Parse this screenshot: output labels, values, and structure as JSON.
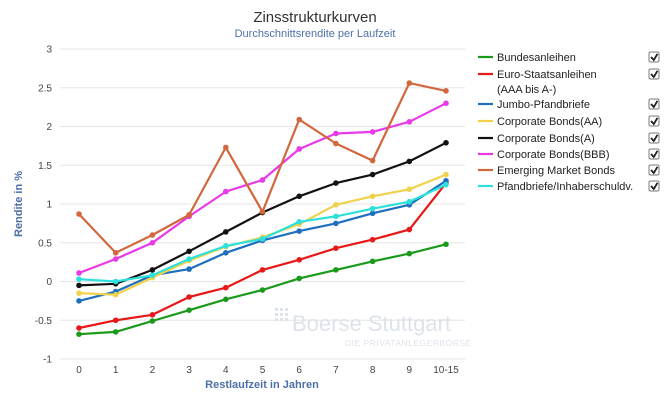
{
  "chart_data": {
    "type": "line",
    "title": "Zinsstrukturkurven",
    "subtitle": "Durchschnittsrendite per Laufzeit",
    "xlabel": "Restlaufzeit in Jahren",
    "ylabel": "Rendite in %",
    "categories": [
      "0",
      "1",
      "2",
      "3",
      "4",
      "5",
      "6",
      "7",
      "8",
      "9",
      "10-15"
    ],
    "y_ticks": [
      "3",
      "2.5",
      "2",
      "1.5",
      "1",
      "0.5",
      "0",
      "-0.5",
      "-1"
    ],
    "ylim": [
      -1,
      3
    ],
    "grid": true,
    "legend_placement": "right",
    "series": [
      {
        "name": "Bundesanleihen",
        "color": "#1a9a1a",
        "values": [
          -0.68,
          -0.65,
          -0.51,
          -0.37,
          -0.23,
          -0.11,
          0.04,
          0.15,
          0.26,
          0.36,
          0.48
        ]
      },
      {
        "name": "Euro-Staatsanleihen",
        "name_line2": "(AAA bis A-)",
        "color": "#e81818",
        "values": [
          -0.6,
          -0.5,
          -0.43,
          -0.2,
          -0.08,
          0.15,
          0.28,
          0.43,
          0.54,
          0.67,
          1.27
        ]
      },
      {
        "name": "Jumbo-Pfandbriefe",
        "color": "#1f6fbf",
        "values": [
          -0.25,
          -0.13,
          0.08,
          0.16,
          0.37,
          0.53,
          0.65,
          0.75,
          0.88,
          0.99,
          1.3
        ]
      },
      {
        "name": "Corporate Bonds(AA)",
        "color": "#f0d24a",
        "values": [
          -0.15,
          -0.17,
          0.05,
          0.27,
          0.45,
          0.57,
          0.74,
          0.99,
          1.1,
          1.19,
          1.38
        ]
      },
      {
        "name": "Corporate Bonds(A)",
        "color": "#111111",
        "values": [
          -0.05,
          -0.03,
          0.15,
          0.39,
          0.64,
          0.89,
          1.1,
          1.27,
          1.38,
          1.55,
          1.79
        ]
      },
      {
        "name": "Corporate Bonds(BBB)",
        "color": "#e83ae8",
        "values": [
          0.11,
          0.29,
          0.5,
          0.84,
          1.16,
          1.31,
          1.71,
          1.91,
          1.93,
          2.06,
          2.3
        ]
      },
      {
        "name": "Emerging Market Bonds",
        "color": "#d2673e",
        "values": [
          0.87,
          0.37,
          0.6,
          0.86,
          1.73,
          0.9,
          2.09,
          1.78,
          1.56,
          2.56,
          2.46
        ]
      },
      {
        "name": "Pfandbriefe/Inhaberschuldv.",
        "color": "#2ee0dc",
        "values": [
          0.03,
          0.0,
          0.08,
          0.29,
          0.46,
          0.55,
          0.77,
          0.84,
          0.94,
          1.03,
          1.25
        ]
      }
    ]
  },
  "watermark": {
    "main": "Boerse Stuttgart",
    "sub": "DIE PRIVATANLEGERBÖRSE"
  }
}
